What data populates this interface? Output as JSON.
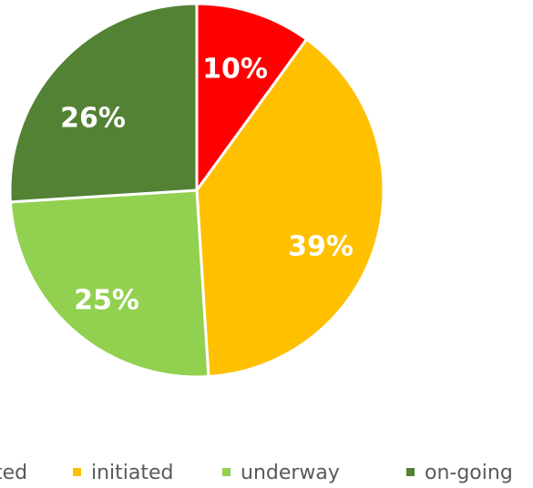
{
  "chart_data": {
    "type": "pie",
    "title": "",
    "slices": [
      {
        "label": "",
        "display_label": "10%",
        "value": 10,
        "color": "#ff0000"
      },
      {
        "label": "initiated",
        "display_label": "39%",
        "value": 39,
        "color": "#ffc000"
      },
      {
        "label": "underway",
        "display_label": "25%",
        "value": 25,
        "color": "#92d050"
      },
      {
        "label": "on-going",
        "display_label": "26%",
        "value": 26,
        "color": "#548235"
      }
    ],
    "legend": {
      "placement": "bottom",
      "entries": [
        {
          "text": "ted",
          "color": "#ff0000",
          "show_marker": false
        },
        {
          "text": "initiated",
          "color": "#ffc000",
          "show_marker": true
        },
        {
          "text": "underway",
          "color": "#92d050",
          "show_marker": true
        },
        {
          "text": "on-going",
          "color": "#548235",
          "show_marker": true
        }
      ]
    }
  }
}
